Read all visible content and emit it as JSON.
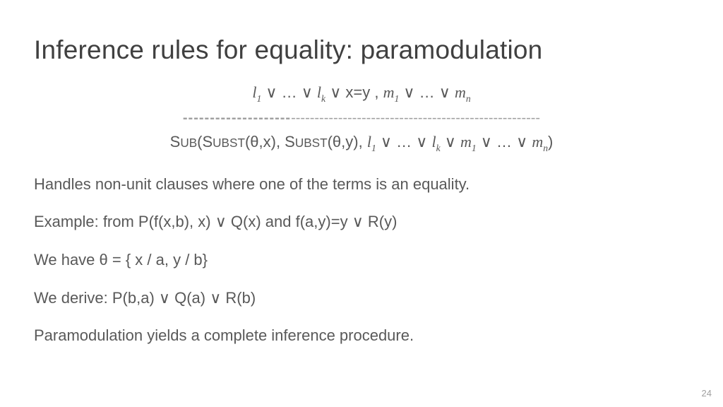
{
  "title": "Inference rules for equality: paramodulation",
  "rule": {
    "premise_parts": {
      "l": "l",
      "sub1": "1",
      "or": " ∨ … ∨ ",
      "subk": "k",
      "eq": " ∨ x=y   ,   ",
      "m": "m",
      "subn": "n"
    },
    "line_thick": "--------------------",
    "line_thin": "-----------------------------------------------------",
    "conclusion_parts": {
      "sub_open": "S",
      "ub": "UB",
      "open_paren": "(S",
      "ubst": "UBST",
      "theta_x": "(θ,x), S",
      "theta_y": "(θ,y), ",
      "l": "l",
      "sub1": "1",
      "or1": " ∨ … ∨ ",
      "subk": "k",
      "or2": " ∨ ",
      "m": "m",
      "or3": " ∨ … ∨ ",
      "subn": "n",
      "close": ")"
    }
  },
  "body": {
    "handles": "Handles non-unit clauses where one of the terms is an equality.",
    "example": "Example: from     P(f(x,b), x) ∨ Q(x)     and    f(a,y)=y ∨ R(y)",
    "theta": "We have θ = { x / a,  y / b}",
    "derive": "We derive:   P(b,a) ∨ Q(a) ∨ R(b)",
    "complete": "Paramodulation yields a complete inference procedure."
  },
  "page_number": "24",
  "colors": {
    "title": "#404040",
    "body": "#595959",
    "line": "#a0a0a0",
    "background": "#ffffff"
  },
  "fonts": {
    "title_size": 37,
    "body_size": 22,
    "page_num_size": 13
  }
}
